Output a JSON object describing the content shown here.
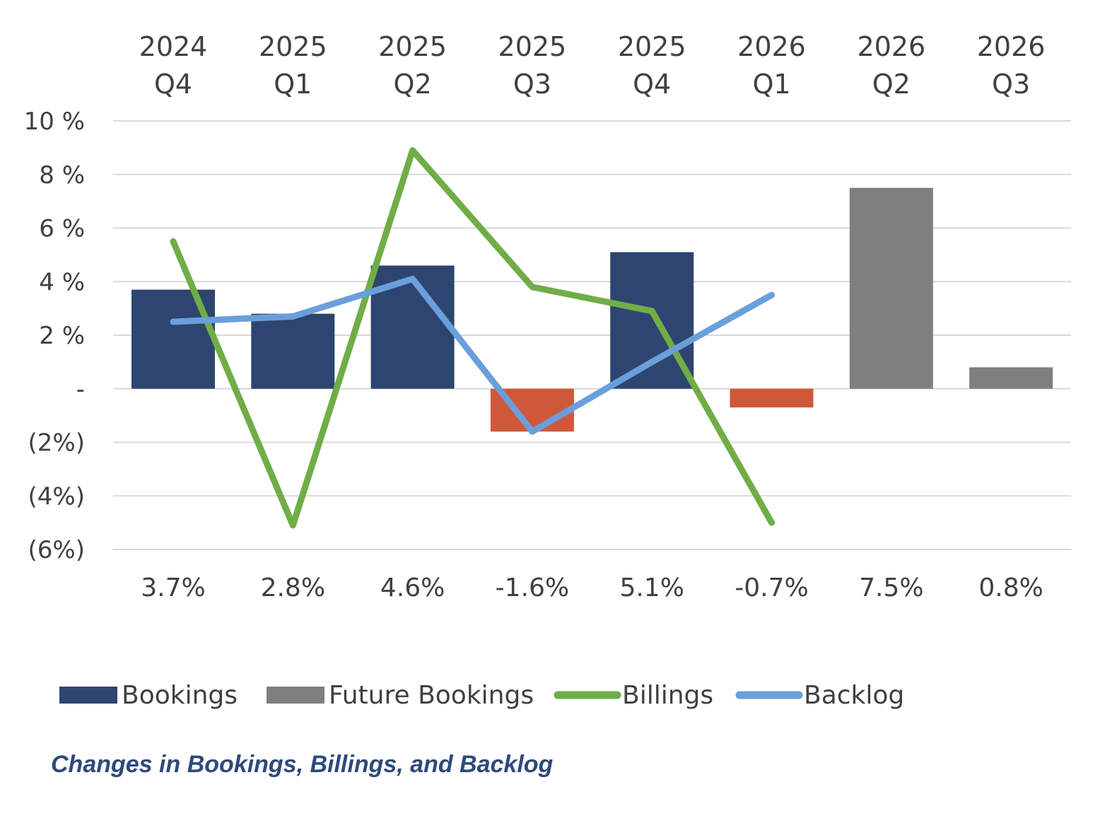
{
  "chart_data": {
    "type": "bar",
    "title": "",
    "caption": "Changes in Bookings, Billings, and Backlog",
    "xlabel": "",
    "ylabel": "",
    "ylim": [
      -6,
      10
    ],
    "yticks": [
      {
        "value": 10,
        "label": "10 %"
      },
      {
        "value": 8,
        "label": "8 %"
      },
      {
        "value": 6,
        "label": "6 %"
      },
      {
        "value": 4,
        "label": "4 %"
      },
      {
        "value": 2,
        "label": "2 %"
      },
      {
        "value": 0,
        "label": "-"
      },
      {
        "value": -2,
        "label": "(2%)"
      },
      {
        "value": -4,
        "label": "(4%)"
      },
      {
        "value": -6,
        "label": "(6%)"
      }
    ],
    "categories": [
      {
        "year": "2024",
        "quarter": "Q4"
      },
      {
        "year": "2025",
        "quarter": "Q1"
      },
      {
        "year": "2025",
        "quarter": "Q2"
      },
      {
        "year": "2025",
        "quarter": "Q3"
      },
      {
        "year": "2025",
        "quarter": "Q4"
      },
      {
        "year": "2026",
        "quarter": "Q1"
      },
      {
        "year": "2026",
        "quarter": "Q2"
      },
      {
        "year": "2026",
        "quarter": "Q3"
      }
    ],
    "grid": true,
    "legend_position": "bottom",
    "series": [
      {
        "name": "Bookings",
        "kind": "bar",
        "color": "#2E4570",
        "negative_color": "#D0583A",
        "values": [
          3.7,
          2.8,
          4.6,
          -1.6,
          5.1,
          -0.7,
          null,
          null
        ]
      },
      {
        "name": "Future Bookings",
        "kind": "bar",
        "color": "#7F7F7F",
        "values": [
          null,
          null,
          null,
          null,
          null,
          null,
          7.5,
          0.8
        ]
      },
      {
        "name": "Billings",
        "kind": "line",
        "color": "#70AD47",
        "values": [
          5.5,
          -5.1,
          8.9,
          3.8,
          2.9,
          -5.0,
          null,
          null
        ]
      },
      {
        "name": "Backlog",
        "kind": "line",
        "color": "#6A9FDB",
        "values": [
          2.5,
          2.7,
          4.1,
          -1.6,
          1.0,
          3.5,
          null,
          null
        ]
      }
    ],
    "data_labels": [
      "3.7%",
      "2.8%",
      "4.6%",
      "-1.6%",
      "5.1%",
      "-0.7%",
      "7.5%",
      "0.8%"
    ]
  }
}
